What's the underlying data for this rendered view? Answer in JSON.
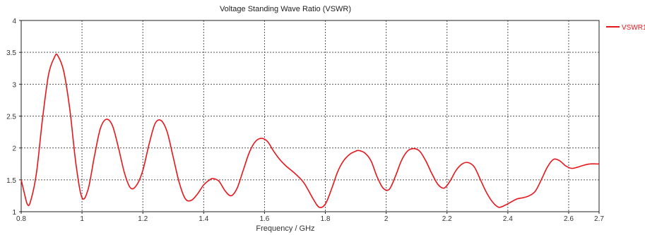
{
  "chart_data": {
    "type": "line",
    "title": "Voltage Standing Wave Ratio (VSWR)",
    "xlabel": "Frequency / GHz",
    "ylabel": "",
    "xlim": [
      0.8,
      2.7
    ],
    "ylim": [
      1,
      4
    ],
    "xticks": [
      0.8,
      1,
      1.2,
      1.4,
      1.6,
      1.8,
      2,
      2.2,
      2.4,
      2.6,
      2.7
    ],
    "yticks": [
      1,
      1.5,
      2,
      2.5,
      3,
      3.5,
      4
    ],
    "xtick_labels": [
      "0.8",
      "1",
      "1.2",
      "1.4",
      "1.6",
      "1.8",
      "2",
      "2.2",
      "2.4",
      "2.6",
      "2.7"
    ],
    "ytick_labels": [
      "1",
      "1.5",
      "2",
      "2.5",
      "3",
      "3.5",
      "4"
    ],
    "grid": true,
    "legend_position": "top-right",
    "series": [
      {
        "name": "VSWR1",
        "color": "#e8161b",
        "x": [
          0.8,
          0.81,
          0.82,
          0.83,
          0.85,
          0.87,
          0.89,
          0.91,
          0.92,
          0.94,
          0.96,
          0.98,
          1.0,
          1.02,
          1.04,
          1.06,
          1.08,
          1.1,
          1.12,
          1.14,
          1.16,
          1.18,
          1.2,
          1.22,
          1.24,
          1.26,
          1.28,
          1.3,
          1.32,
          1.34,
          1.36,
          1.38,
          1.4,
          1.42,
          1.43,
          1.45,
          1.47,
          1.49,
          1.51,
          1.53,
          1.55,
          1.57,
          1.59,
          1.61,
          1.63,
          1.65,
          1.67,
          1.7,
          1.73,
          1.76,
          1.78,
          1.8,
          1.82,
          1.84,
          1.86,
          1.88,
          1.9,
          1.91,
          1.93,
          1.95,
          1.97,
          1.99,
          2.01,
          2.03,
          2.05,
          2.07,
          2.09,
          2.11,
          2.13,
          2.15,
          2.17,
          2.19,
          2.21,
          2.23,
          2.25,
          2.27,
          2.29,
          2.31,
          2.33,
          2.35,
          2.37,
          2.39,
          2.41,
          2.43,
          2.45,
          2.47,
          2.49,
          2.51,
          2.53,
          2.55,
          2.57,
          2.59,
          2.61,
          2.63,
          2.65,
          2.67,
          2.69,
          2.7
        ],
        "y": [
          1.5,
          1.3,
          1.12,
          1.15,
          1.6,
          2.45,
          3.15,
          3.43,
          3.45,
          3.2,
          2.6,
          1.75,
          1.22,
          1.35,
          1.85,
          2.3,
          2.45,
          2.35,
          2.0,
          1.6,
          1.37,
          1.42,
          1.65,
          2.05,
          2.38,
          2.43,
          2.25,
          1.85,
          1.45,
          1.2,
          1.18,
          1.28,
          1.42,
          1.5,
          1.52,
          1.48,
          1.33,
          1.25,
          1.37,
          1.65,
          1.93,
          2.1,
          2.15,
          2.1,
          1.95,
          1.82,
          1.72,
          1.6,
          1.45,
          1.2,
          1.07,
          1.12,
          1.35,
          1.62,
          1.8,
          1.9,
          1.95,
          1.96,
          1.92,
          1.8,
          1.55,
          1.37,
          1.35,
          1.55,
          1.8,
          1.95,
          1.99,
          1.95,
          1.8,
          1.6,
          1.43,
          1.37,
          1.48,
          1.65,
          1.75,
          1.77,
          1.7,
          1.5,
          1.3,
          1.15,
          1.07,
          1.1,
          1.15,
          1.2,
          1.22,
          1.25,
          1.32,
          1.5,
          1.7,
          1.82,
          1.8,
          1.72,
          1.68,
          1.7,
          1.73,
          1.75,
          1.75,
          1.75
        ]
      }
    ]
  }
}
